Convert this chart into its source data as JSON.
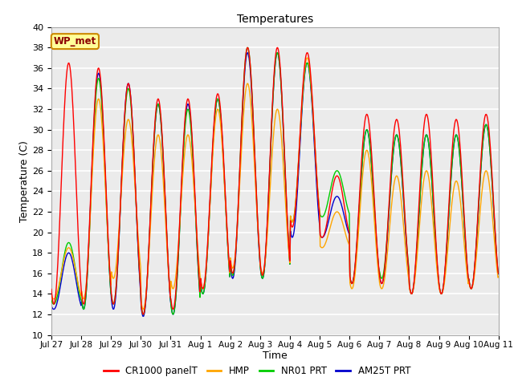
{
  "title": "Temperatures",
  "xlabel": "Time",
  "ylabel": "Temperature (C)",
  "ylim": [
    10,
    40
  ],
  "plot_bg": "#ebebeb",
  "grid_color": "white",
  "colors": {
    "CR1000 panelT": "#ff0000",
    "HMP": "#ffa500",
    "NR01 PRT": "#00cc00",
    "AM25T PRT": "#0000cc"
  },
  "annotation_text": "WP_met",
  "annotation_bg": "#ffff99",
  "annotation_border": "#cc8800",
  "tick_labels": [
    "Jul 27",
    "Jul 28",
    "Jul 29",
    "Jul 30",
    "Jul 31",
    "Aug 1",
    "Aug 2",
    "Aug 3",
    "Aug 4",
    "Aug 5",
    "Aug 6",
    "Aug 7",
    "Aug 8",
    "Aug 9",
    "Aug 10",
    "Aug 11"
  ],
  "tick_positions": [
    0,
    1,
    2,
    3,
    4,
    5,
    6,
    7,
    8,
    9,
    10,
    11,
    12,
    13,
    14,
    15
  ],
  "highs_cr": [
    36.5,
    36.0,
    34.5,
    33.0,
    33.0,
    33.5,
    38.0,
    38.0,
    37.5,
    25.5,
    31.5,
    31.0,
    31.5,
    31.0,
    31.5,
    31.5
  ],
  "lows_cr": [
    13.0,
    13.0,
    13.0,
    12.0,
    12.5,
    14.5,
    16.0,
    15.8,
    20.5,
    19.5,
    15.0,
    15.0,
    14.0,
    14.0,
    14.5,
    15.0
  ],
  "highs_hmp": [
    18.5,
    33.0,
    31.0,
    29.5,
    29.5,
    32.0,
    34.5,
    32.0,
    37.0,
    22.0,
    28.0,
    25.5,
    26.0,
    25.0,
    26.0,
    25.5
  ],
  "lows_hmp": [
    13.5,
    13.5,
    15.5,
    12.5,
    14.5,
    14.5,
    16.5,
    16.0,
    21.0,
    18.5,
    14.5,
    14.5,
    14.0,
    14.0,
    14.5,
    15.0
  ],
  "highs_nr": [
    19.0,
    35.0,
    34.0,
    32.5,
    32.0,
    33.0,
    38.0,
    37.5,
    36.5,
    26.0,
    30.0,
    29.5,
    29.5,
    29.5,
    30.5,
    30.0
  ],
  "lows_nr": [
    13.0,
    12.5,
    13.0,
    12.0,
    12.0,
    14.0,
    15.8,
    15.5,
    21.0,
    21.5,
    15.0,
    15.5,
    14.0,
    14.0,
    14.5,
    15.2
  ],
  "highs_am": [
    18.0,
    35.5,
    34.5,
    32.5,
    32.5,
    33.0,
    37.5,
    37.5,
    36.5,
    23.5,
    30.0,
    29.5,
    29.5,
    29.5,
    30.5,
    30.0
  ],
  "lows_am": [
    12.5,
    12.5,
    12.5,
    11.8,
    12.0,
    14.0,
    15.5,
    15.5,
    19.5,
    19.5,
    15.0,
    15.0,
    14.0,
    14.0,
    14.5,
    15.0
  ]
}
